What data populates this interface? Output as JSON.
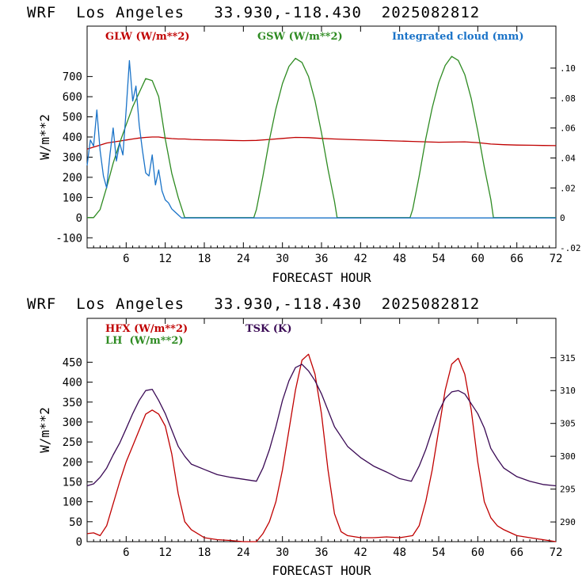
{
  "chart_data": [
    {
      "type": "line",
      "header": "WRF  Los Angeles   33.930,-118.430  2025082812",
      "title": "",
      "xlabel": "FORECAST HOUR",
      "ylabel": "W/m**2",
      "xlim": [
        0,
        72
      ],
      "ylim": [
        -150,
        950
      ],
      "xticks": [
        "6",
        "12",
        "18",
        "24",
        "30",
        "36",
        "42",
        "48",
        "54",
        "60",
        "66",
        "72"
      ],
      "yticks": [
        "-100",
        "0",
        "100",
        "200",
        "300",
        "400",
        "500",
        "600",
        "700"
      ],
      "y2lim": [
        -0.02,
        0.128
      ],
      "y2ticks": [
        ".10",
        ".08",
        ".06",
        ".04",
        ".02",
        "0",
        "-.02"
      ],
      "grid": false,
      "legend_position": "top",
      "series": [
        {
          "name": "GLW (W/m**2)",
          "color": "#c00000",
          "axis": "left",
          "x": [
            0,
            1,
            2,
            3,
            4,
            5,
            6,
            7,
            8,
            9,
            10,
            11,
            12,
            13,
            14,
            15,
            16,
            18,
            20,
            22,
            24,
            26,
            28,
            30,
            32,
            34,
            36,
            38,
            40,
            42,
            44,
            46,
            48,
            50,
            52,
            54,
            56,
            58,
            60,
            62,
            64,
            66,
            68,
            70,
            72
          ],
          "y": [
            340,
            350,
            360,
            370,
            375,
            380,
            385,
            390,
            395,
            398,
            400,
            400,
            395,
            392,
            390,
            390,
            388,
            386,
            385,
            383,
            382,
            383,
            388,
            393,
            398,
            397,
            393,
            390,
            388,
            386,
            384,
            382,
            380,
            378,
            376,
            374,
            375,
            376,
            372,
            365,
            362,
            360,
            359,
            358,
            357
          ]
        },
        {
          "name": "GSW (W/m**2)",
          "color": "#2e8b22",
          "axis": "left",
          "x": [
            0,
            1,
            2,
            3,
            4,
            5,
            6,
            7,
            8,
            9,
            10,
            11,
            12,
            13,
            14,
            15,
            20,
            25,
            25.6,
            26,
            27,
            28,
            29,
            30,
            31,
            32,
            33,
            34,
            35,
            36,
            37,
            38,
            38.4,
            45,
            49.6,
            50,
            51,
            52,
            53,
            54,
            55,
            56,
            57,
            58,
            59,
            60,
            61,
            62,
            62.4,
            66,
            72
          ],
          "y": [
            0,
            0,
            40,
            150,
            270,
            370,
            460,
            550,
            620,
            690,
            680,
            600,
            390,
            220,
            100,
            0,
            0,
            0,
            0,
            40,
            205,
            385,
            540,
            665,
            750,
            790,
            770,
            700,
            580,
            420,
            240,
            80,
            0,
            0,
            0,
            40,
            205,
            390,
            545,
            670,
            755,
            800,
            780,
            710,
            590,
            430,
            250,
            90,
            0,
            0,
            0
          ]
        },
        {
          "name": "Integrated cloud (mm)",
          "color": "#1a73c8",
          "axis": "right",
          "x": [
            0,
            0.5,
            1,
            1.5,
            2,
            2.5,
            3,
            3.5,
            4,
            4.5,
            5,
            5.5,
            6,
            6.5,
            7,
            7.5,
            8,
            8.5,
            9,
            9.5,
            10,
            10.5,
            11,
            11.5,
            12,
            12.5,
            13,
            13.5,
            14,
            14.5,
            15,
            20,
            25,
            30,
            36,
            42,
            48,
            54,
            60,
            66,
            72
          ],
          "y": [
            0.035,
            0.052,
            0.048,
            0.072,
            0.045,
            0.028,
            0.02,
            0.042,
            0.06,
            0.038,
            0.05,
            0.042,
            0.072,
            0.105,
            0.078,
            0.088,
            0.062,
            0.045,
            0.03,
            0.028,
            0.042,
            0.022,
            0.032,
            0.018,
            0.012,
            0.01,
            0.006,
            0.004,
            0.002,
            0,
            0,
            0,
            0,
            0,
            0,
            0,
            0,
            0,
            0,
            0,
            0
          ]
        }
      ]
    },
    {
      "type": "line",
      "header": "WRF  Los Angeles   33.930,-118.430  2025082812",
      "title": "",
      "xlabel": "FORECAST HOUR",
      "ylabel": "W/m**2",
      "xlim": [
        0,
        72
      ],
      "ylim": [
        0,
        560
      ],
      "xticks": [
        "6",
        "12",
        "18",
        "24",
        "30",
        "36",
        "42",
        "48",
        "54",
        "60",
        "66",
        "72"
      ],
      "yticks": [
        "0",
        "50",
        "100",
        "150",
        "200",
        "250",
        "300",
        "350",
        "400",
        "450"
      ],
      "y2lim": [
        287,
        321
      ],
      "y2ticks": [
        "290",
        "295",
        "300",
        "305",
        "310",
        "315"
      ],
      "grid": false,
      "legend_position": "top",
      "series": [
        {
          "name": "HFX (W/m**2)",
          "color": "#c00000",
          "axis": "left",
          "x": [
            0,
            1,
            2,
            3,
            4,
            5,
            6,
            7,
            8,
            9,
            10,
            11,
            12,
            13,
            14,
            15,
            16,
            18,
            20,
            22,
            24,
            26,
            27,
            28,
            29,
            30,
            31,
            32,
            33,
            34,
            35,
            36,
            37,
            38,
            39,
            40,
            42,
            44,
            46,
            48,
            50,
            51,
            52,
            53,
            54,
            55,
            56,
            57,
            58,
            59,
            60,
            61,
            62,
            63,
            64,
            66,
            68,
            70,
            72
          ],
          "y": [
            20,
            22,
            15,
            40,
            95,
            150,
            200,
            240,
            280,
            320,
            330,
            320,
            290,
            220,
            120,
            50,
            30,
            10,
            5,
            3,
            0,
            0,
            20,
            50,
            100,
            180,
            280,
            380,
            455,
            470,
            420,
            320,
            180,
            70,
            25,
            15,
            10,
            10,
            12,
            10,
            15,
            40,
            100,
            180,
            280,
            380,
            445,
            460,
            420,
            330,
            200,
            100,
            60,
            40,
            30,
            15,
            10,
            5,
            0
          ]
        },
        {
          "name": "LH  (W/m**2)",
          "color": "#2e8b22",
          "axis": "left",
          "x": [],
          "y": []
        },
        {
          "name": "TSK (K)",
          "color": "#3a0a55",
          "axis": "right",
          "x": [
            0,
            1,
            2,
            3,
            4,
            5,
            6,
            7,
            8,
            9,
            10,
            11,
            12,
            13,
            14,
            15,
            16,
            18,
            20,
            22,
            24,
            26,
            27,
            28,
            29,
            30,
            31,
            32,
            33,
            34,
            35,
            36,
            37,
            38,
            40,
            42,
            44,
            46,
            48,
            49.8,
            50,
            51,
            52,
            53,
            54,
            55,
            56,
            57,
            58,
            59,
            60,
            61,
            62,
            63,
            64,
            66,
            68,
            70,
            72
          ],
          "y": [
            295.5,
            295.8,
            296.8,
            298.2,
            300.2,
            302,
            304.2,
            306.5,
            308.5,
            310,
            310.2,
            308.5,
            306.5,
            304,
            301.5,
            300,
            298.8,
            298,
            297.2,
            296.8,
            296.5,
            296.2,
            298.2,
            301,
            304.5,
            308.5,
            311.5,
            313.5,
            314,
            313,
            311.5,
            309.5,
            307,
            304.5,
            301.5,
            299.8,
            298.5,
            297.6,
            296.6,
            296.2,
            296.6,
            298.5,
            301,
            304,
            306.8,
            308.8,
            309.8,
            310,
            309.5,
            308,
            306.5,
            304.3,
            301.2,
            299.6,
            298.2,
            296.9,
            296.2,
            295.7,
            295.5
          ]
        }
      ]
    }
  ]
}
